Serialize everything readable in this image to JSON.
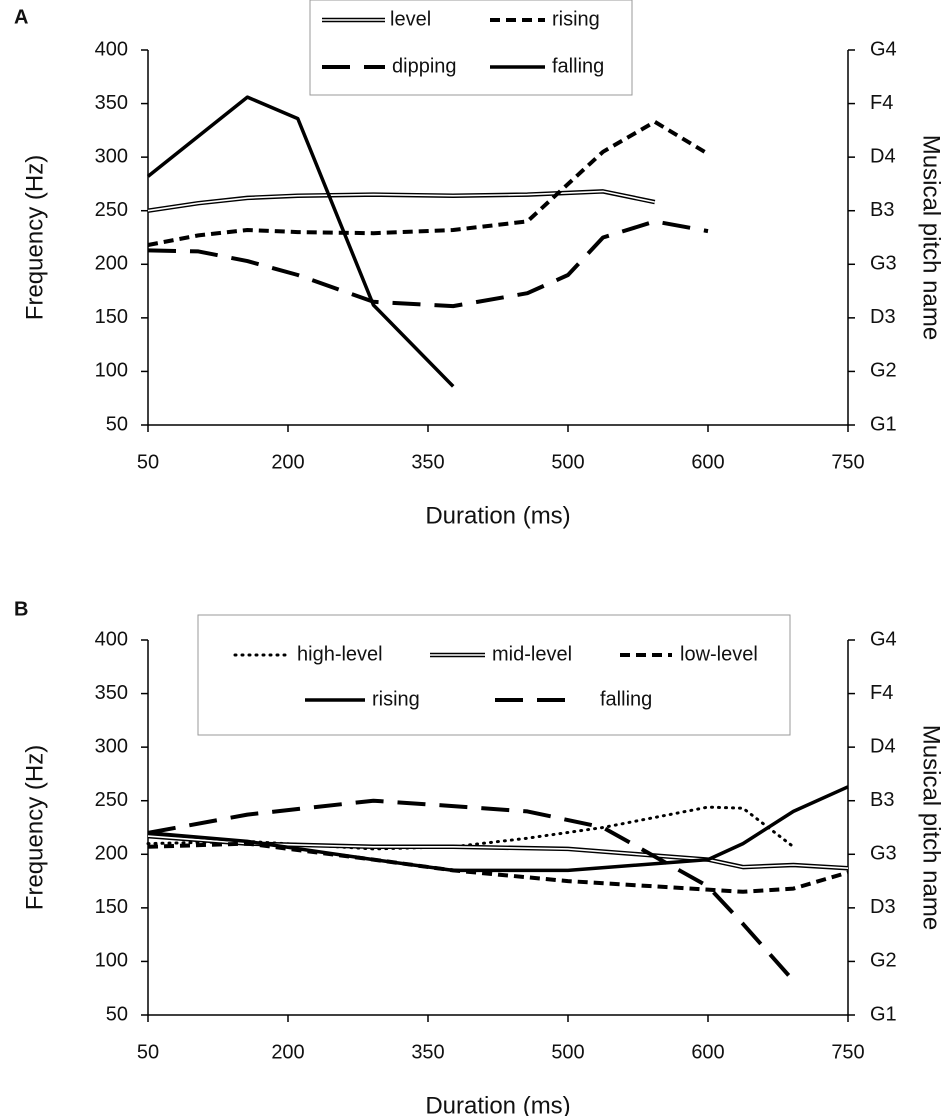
{
  "chart_data": [
    {
      "type": "line",
      "panel": "A",
      "xlabel": "Duration (ms)",
      "ylabel": "Frequency (Hz)",
      "y2label": "Musical pitch name",
      "xlim": [
        0,
        5
      ],
      "xticks": [
        {
          "value": 0,
          "label": "50"
        },
        {
          "value": 1,
          "label": "200"
        },
        {
          "value": 2,
          "label": "350"
        },
        {
          "value": 3,
          "label": "500"
        },
        {
          "value": 4,
          "label": "600"
        },
        {
          "value": 5,
          "label": "750"
        }
      ],
      "ylim": [
        50,
        400
      ],
      "yticks": [
        50,
        100,
        150,
        200,
        250,
        300,
        350,
        400
      ],
      "y2lim": [
        50,
        400
      ],
      "y2ticks": [
        {
          "value": 50,
          "label": "G1"
        },
        {
          "value": 100,
          "label": "G2"
        },
        {
          "value": 150,
          "label": "D3"
        },
        {
          "value": 200,
          "label": "G3"
        },
        {
          "value": 250,
          "label": "B3"
        },
        {
          "value": 300,
          "label": "D4"
        },
        {
          "value": 350,
          "label": "F4"
        },
        {
          "value": 400,
          "label": "G4"
        }
      ],
      "series": [
        {
          "name": "level",
          "color": "#000000",
          "style": "double",
          "x": [
            0,
            0.36,
            0.71,
            1.07,
            1.61,
            2.18,
            2.71,
            3.25,
            3.62
          ],
          "values": [
            250,
            257,
            262,
            264,
            265,
            264,
            265,
            268,
            258
          ]
        },
        {
          "name": "rising",
          "color": "#000000",
          "style": "dash",
          "x": [
            0,
            0.36,
            0.71,
            1.07,
            1.61,
            2.18,
            2.71,
            3.25,
            3.62,
            4
          ],
          "values": [
            218,
            227,
            232,
            230,
            229,
            232,
            240,
            305,
            333,
            303
          ]
        },
        {
          "name": "dipping",
          "color": "#000000",
          "style": "longdash",
          "x": [
            0,
            0.36,
            0.71,
            1.07,
            1.61,
            2.18,
            2.71,
            3.0,
            3.25,
            3.62,
            4
          ],
          "values": [
            213,
            212,
            203,
            190,
            165,
            161,
            173,
            190,
            225,
            240,
            231
          ]
        },
        {
          "name": "falling",
          "color": "#000000",
          "style": "solid",
          "x": [
            0,
            0.71,
            1.07,
            1.61,
            2.18
          ],
          "values": [
            282,
            356,
            336,
            162,
            86
          ]
        }
      ]
    },
    {
      "type": "line",
      "panel": "B",
      "xlabel": "Duration (ms)",
      "ylabel": "Frequency (Hz)",
      "y2label": "Musical pitch name",
      "xlim": [
        0,
        5
      ],
      "xticks": [
        {
          "value": 0,
          "label": "50"
        },
        {
          "value": 1,
          "label": "200"
        },
        {
          "value": 2,
          "label": "350"
        },
        {
          "value": 3,
          "label": "500"
        },
        {
          "value": 4,
          "label": "600"
        },
        {
          "value": 5,
          "label": "750"
        }
      ],
      "ylim": [
        50,
        400
      ],
      "yticks": [
        50,
        100,
        150,
        200,
        250,
        300,
        350,
        400
      ],
      "y2lim": [
        50,
        400
      ],
      "y2ticks": [
        {
          "value": 50,
          "label": "G1"
        },
        {
          "value": 100,
          "label": "G2"
        },
        {
          "value": 150,
          "label": "D3"
        },
        {
          "value": 200,
          "label": "G3"
        },
        {
          "value": 250,
          "label": "B3"
        },
        {
          "value": 300,
          "label": "D4"
        },
        {
          "value": 350,
          "label": "F4"
        },
        {
          "value": 400,
          "label": "G4"
        }
      ],
      "series": [
        {
          "name": "high-level",
          "color": "#000000",
          "style": "dot",
          "x": [
            0,
            0.71,
            1.61,
            2.18,
            2.71,
            3.25,
            4,
            4.25,
            4.61
          ],
          "values": [
            210,
            212,
            205,
            207,
            215,
            225,
            244,
            243,
            207
          ]
        },
        {
          "name": "mid-level",
          "color": "#000000",
          "style": "double",
          "x": [
            0,
            0.71,
            1.61,
            2.18,
            3.0,
            4,
            4.25,
            4.61,
            5
          ],
          "values": [
            217,
            210,
            207,
            207,
            205,
            195,
            188,
            190,
            187
          ]
        },
        {
          "name": "low-level",
          "color": "#000000",
          "style": "dash",
          "x": [
            0,
            0.71,
            1.61,
            2.18,
            3.0,
            4,
            4.25,
            4.61,
            5
          ],
          "values": [
            207,
            210,
            195,
            185,
            175,
            167,
            165,
            168,
            183
          ]
        },
        {
          "name": "rising",
          "color": "#000000",
          "style": "solid",
          "x": [
            0,
            0.71,
            1.61,
            2.18,
            3.0,
            4,
            4.25,
            4.61,
            5
          ],
          "values": [
            220,
            212,
            195,
            185,
            185,
            195,
            210,
            240,
            263
          ]
        },
        {
          "name": "falling",
          "color": "#000000",
          "style": "longdash",
          "x": [
            0,
            0.71,
            1.61,
            2.18,
            2.71,
            3.25,
            4,
            4.25,
            4.61
          ],
          "values": [
            220,
            237,
            250,
            245,
            240,
            225,
            170,
            135,
            82
          ]
        }
      ]
    }
  ]
}
